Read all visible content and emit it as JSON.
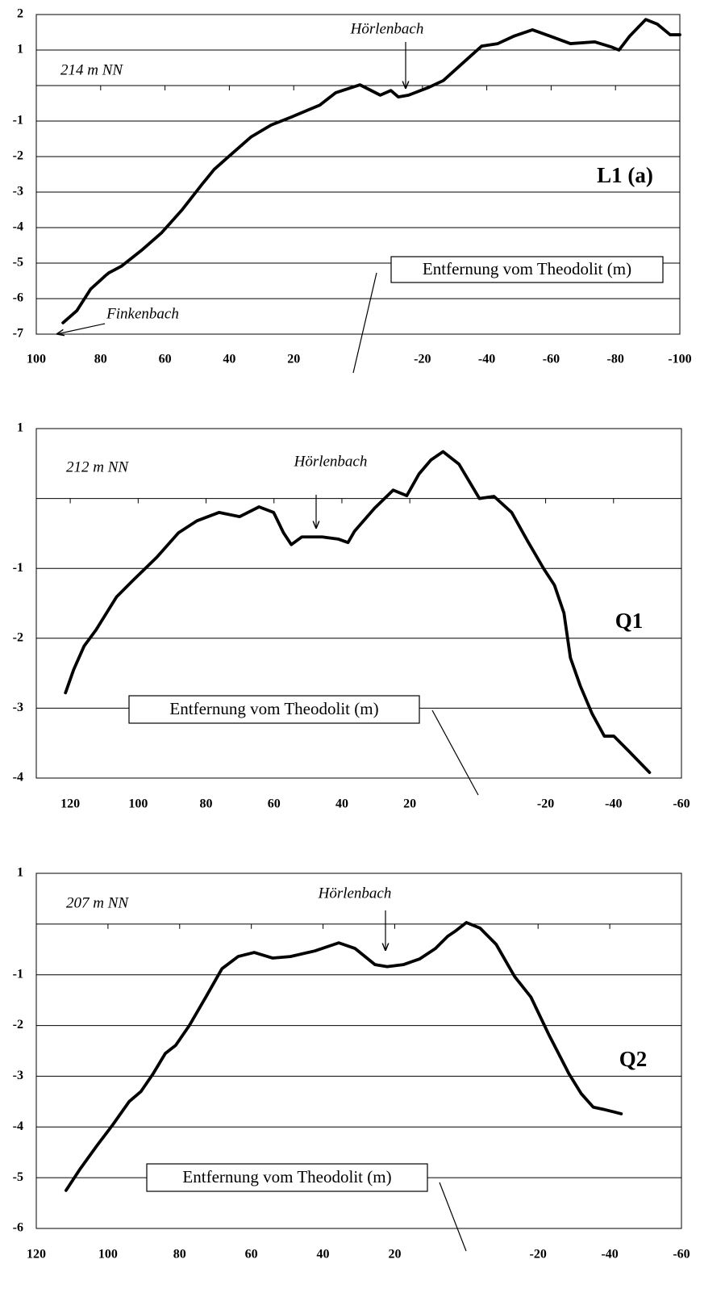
{
  "chart_data": [
    {
      "type": "line",
      "title": "L1 (a)",
      "xlabel": "Entfernung vom Theodolit (m)",
      "annotations": [
        "214 m NN",
        "Hörlenbach",
        "Finkenbach"
      ],
      "xlim": [
        100,
        -100
      ],
      "xticks": [
        100,
        80,
        60,
        40,
        20,
        -20,
        -40,
        -60,
        -80,
        -100
      ],
      "ylim": [
        -7,
        2
      ],
      "yticks": [
        2,
        1,
        -1,
        -2,
        -3,
        -4,
        -5,
        -6,
        -7
      ],
      "grid": true,
      "series": [
        {
          "color": "#000000",
          "x": [
            91.7,
            87.4,
            83.1,
            78.6,
            77.4,
            73.6,
            67.3,
            61,
            54.7,
            48.4,
            44.7,
            39.6,
            33.3,
            27,
            20.8,
            11.9,
            6.9,
            -0.6,
            -6.9,
            -10.2,
            -12.5,
            -15.7,
            -22,
            -26.5,
            -32,
            -38.4,
            -43.4,
            -48.4,
            -54.2,
            -59.7,
            -66,
            -73.6,
            -78.6,
            -81.1,
            -84.4,
            -89.4,
            -93,
            -97,
            -100
          ],
          "values": [
            -6.68,
            -6.34,
            -5.73,
            -5.36,
            -5.27,
            -5.09,
            -4.64,
            -4.14,
            -3.5,
            -2.77,
            -2.36,
            -1.95,
            -1.45,
            -1.11,
            -0.89,
            -0.55,
            -0.2,
            0.02,
            -0.27,
            -0.14,
            -0.32,
            -0.27,
            -0.05,
            0.14,
            0.59,
            1.11,
            1.18,
            1.39,
            1.57,
            1.39,
            1.18,
            1.23,
            1.09,
            1.0,
            1.39,
            1.86,
            1.73,
            1.43,
            1.43
          ]
        }
      ]
    },
    {
      "type": "line",
      "title": "Q1",
      "xlabel": "Entfernung vom Theodolit (m)",
      "annotations": [
        "212 m NN",
        "Hörlenbach"
      ],
      "xlim": [
        130,
        -60
      ],
      "xticks": [
        120,
        100,
        80,
        60,
        40,
        20,
        -20,
        -40,
        -60
      ],
      "ylim": [
        -4,
        1
      ],
      "yticks": [
        1,
        -1,
        -2,
        -3,
        -4
      ],
      "grid": true,
      "series": [
        {
          "color": "#000000",
          "x": [
            121.4,
            119,
            115.9,
            112.4,
            106.4,
            101.7,
            94.5,
            88.1,
            82.7,
            76.2,
            70.1,
            64.4,
            60.1,
            57.2,
            54.9,
            51.8,
            45.8,
            41.1,
            38.2,
            36.3,
            30.4,
            24.9,
            20.9,
            17.3,
            13.8,
            10.2,
            5.5,
            -0.5,
            -4.8,
            -10,
            -14.7,
            -19.5,
            -22.6,
            -25.4,
            -27.3,
            -30.2,
            -33.7,
            -37.3,
            -40.1,
            -44.4,
            -50.6
          ],
          "values": [
            -2.78,
            -2.45,
            -2.11,
            -1.88,
            -1.41,
            -1.18,
            -0.84,
            -0.49,
            -0.32,
            -0.2,
            -0.26,
            -0.12,
            -0.2,
            -0.49,
            -0.66,
            -0.55,
            -0.55,
            -0.58,
            -0.63,
            -0.47,
            -0.14,
            0.12,
            0.04,
            0.35,
            0.55,
            0.67,
            0.49,
            0.0,
            0.03,
            -0.2,
            -0.61,
            -1.01,
            -1.24,
            -1.64,
            -2.28,
            -2.68,
            -3.08,
            -3.4,
            -3.4,
            -3.61,
            -3.92
          ]
        }
      ]
    },
    {
      "type": "line",
      "title": "Q2",
      "xlabel": "Entfernung vom Theodolit (m)",
      "annotations": [
        "207 m NN",
        "Hörlenbach"
      ],
      "xlim": [
        120,
        -60
      ],
      "xticks": [
        120,
        100,
        80,
        60,
        40,
        20,
        -20,
        -40,
        -60
      ],
      "ylim": [
        -6,
        1
      ],
      "yticks": [
        1,
        -1,
        -2,
        -3,
        -4,
        -5,
        -6
      ],
      "grid": true,
      "series": [
        {
          "color": "#000000",
          "x": [
            111.7,
            107.7,
            103.2,
            98.6,
            94.1,
            90.8,
            87.4,
            84,
            81.1,
            77.3,
            72.7,
            68.2,
            63.7,
            59.2,
            54.1,
            49.1,
            42.3,
            35.6,
            31.1,
            25.5,
            22.1,
            17.6,
            13.1,
            8.6,
            5.2,
            2.9,
            0,
            -3.8,
            -8.3,
            -13.5,
            -18,
            -23,
            -28.6,
            -32,
            -35.4,
            -38.7,
            -43.2
          ],
          "values": [
            -5.25,
            -4.82,
            -4.38,
            -3.95,
            -3.5,
            -3.3,
            -2.95,
            -2.55,
            -2.39,
            -2.0,
            -1.44,
            -0.88,
            -0.64,
            -0.56,
            -0.67,
            -0.64,
            -0.53,
            -0.37,
            -0.48,
            -0.8,
            -0.84,
            -0.8,
            -0.69,
            -0.48,
            -0.24,
            -0.13,
            0.03,
            -0.08,
            -0.4,
            -1.04,
            -1.44,
            -2.18,
            -2.95,
            -3.34,
            -3.61,
            -3.66,
            -3.74
          ]
        }
      ]
    }
  ]
}
